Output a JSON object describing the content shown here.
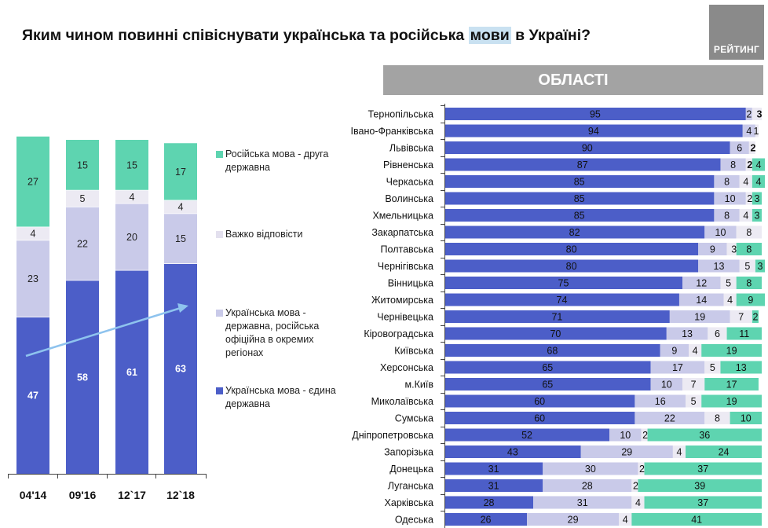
{
  "title_parts": {
    "before": "Яким чином повинні співіснувати українська та російська ",
    "highlight": "мови",
    "after": " в Україні?"
  },
  "logo_text": "РЕЙТИНГ",
  "regions_header": "ОБЛАСТІ",
  "colors": {
    "single_state": "#4c5ec8",
    "ru_official_regions": "#c9cae9",
    "hard_to_say": "#eceaf3",
    "ru_second_state": "#5ed4b0",
    "arrow": "#8ec3ee"
  },
  "chart_data": [
    {
      "type": "bar",
      "stacked": true,
      "categories": [
        "04'14",
        "09'16",
        "12`17",
        "12`18"
      ],
      "series": [
        {
          "name": "Українська мова - єдина державна",
          "values": [
            47,
            58,
            61,
            63
          ]
        },
        {
          "name": "Українська мова - державна, російська офіційна в окремих регіонах",
          "values": [
            23,
            22,
            20,
            15
          ]
        },
        {
          "name": "Важко відповісти",
          "values": [
            4,
            5,
            4,
            4
          ]
        },
        {
          "name": "Російська мова - друга державна",
          "values": [
            27,
            15,
            15,
            17
          ]
        }
      ],
      "legend": [
        "Російська мова - друга державна",
        "Важко відповісти",
        "Українська мова - державна, російська офіційна в окремих регіонах",
        "Українська мова - єдина державна"
      ],
      "legend_position": "right",
      "trend_arrow": true
    },
    {
      "type": "bar",
      "orientation": "horizontal",
      "stacked": true,
      "categories": [
        "Тернопільська",
        "Івано-Франківська",
        "Львівська",
        "Рівненська",
        "Черкаська",
        "Волинська",
        "Хмельницька",
        "Закарпатська",
        "Полтавська",
        "Чернігівська",
        "Вінницька",
        "Житомирська",
        "Чернівецька",
        "Кіровоградська",
        "Київська",
        "Херсонська",
        "м.Київ",
        "Миколаївська",
        "Сумська",
        "Дніпропетровська",
        "Запорізька",
        "Донецька",
        "Луганська",
        "Харківська",
        "Одеська"
      ],
      "series": [
        {
          "values": [
            95,
            94,
            90,
            87,
            85,
            85,
            85,
            82,
            80,
            80,
            75,
            74,
            71,
            70,
            68,
            65,
            65,
            60,
            60,
            52,
            43,
            31,
            31,
            28,
            26
          ]
        },
        {
          "values": [
            2,
            4,
            6,
            8,
            8,
            10,
            8,
            10,
            9,
            13,
            12,
            14,
            19,
            13,
            9,
            17,
            10,
            16,
            22,
            10,
            29,
            30,
            28,
            31,
            29
          ]
        },
        {
          "values": [
            3,
            1,
            2,
            2,
            4,
            2,
            4,
            8,
            3,
            5,
            5,
            4,
            7,
            6,
            4,
            5,
            7,
            5,
            8,
            2,
            4,
            2,
            2,
            4,
            4
          ]
        },
        {
          "values": [
            0,
            0,
            0,
            4,
            4,
            3,
            3,
            0,
            8,
            3,
            8,
            9,
            2,
            11,
            19,
            13,
            17,
            19,
            10,
            36,
            24,
            37,
            39,
            37,
            41
          ]
        }
      ],
      "bold_third_segment": [
        true,
        false,
        true,
        true,
        false,
        false,
        false,
        false,
        false,
        false,
        false,
        false,
        false,
        false,
        false,
        false,
        false,
        false,
        false,
        false,
        false,
        false,
        false,
        false,
        false
      ]
    }
  ]
}
